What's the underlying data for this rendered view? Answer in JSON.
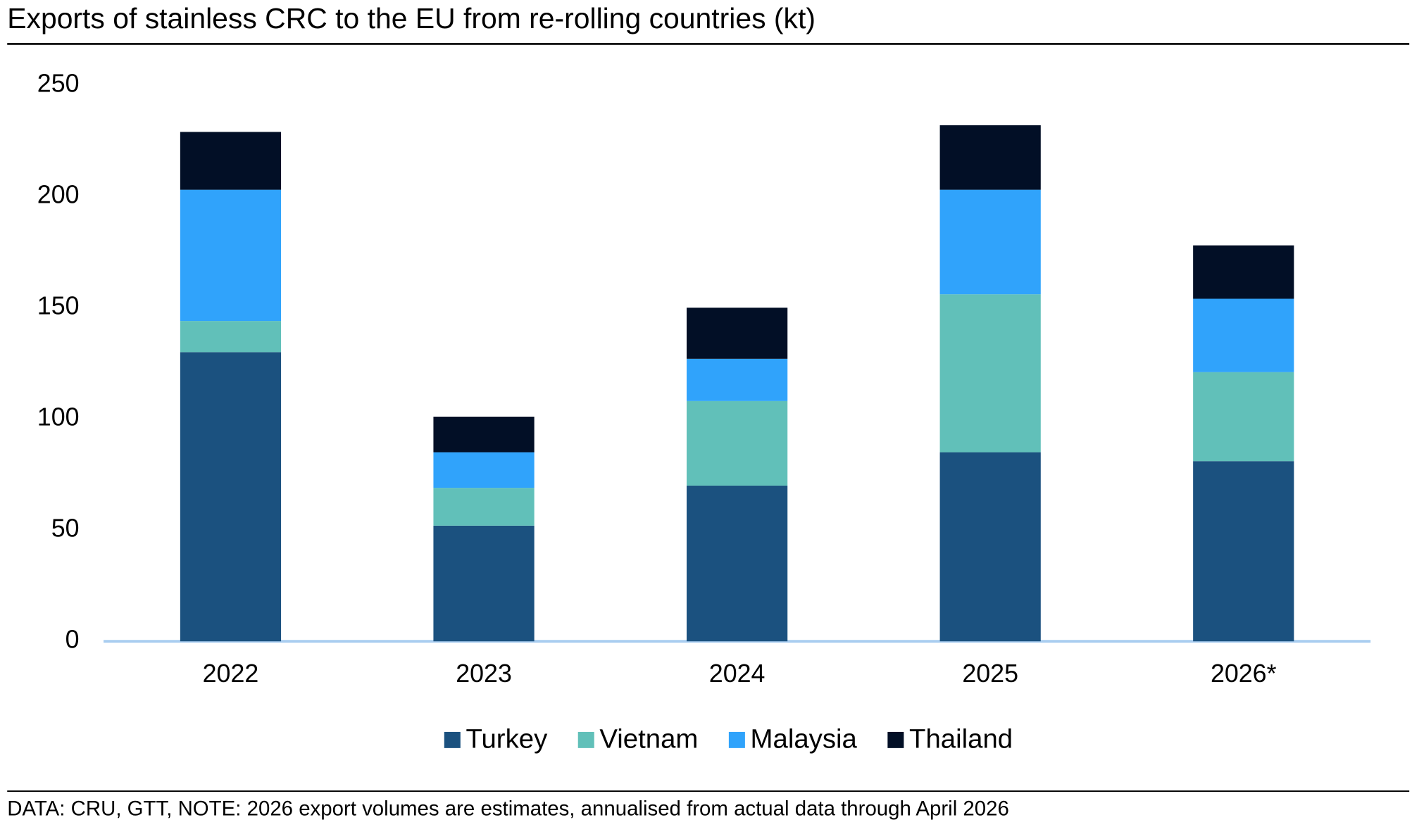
{
  "chart_data": {
    "type": "stacked-bar",
    "title": "Exports of stainless CRC to the EU from re-rolling countries (kt)",
    "categories": [
      "2022",
      "2023",
      "2024",
      "2025",
      "2026*"
    ],
    "series": [
      {
        "name": "Turkey",
        "color": "#1b517f",
        "values": [
          130,
          52,
          70,
          85,
          81
        ]
      },
      {
        "name": "Vietnam",
        "color": "#61c0b9",
        "values": [
          14,
          17,
          38,
          71,
          40
        ]
      },
      {
        "name": "Malaysia",
        "color": "#30a3fb",
        "values": [
          59,
          16,
          19,
          47,
          33
        ]
      },
      {
        "name": "Thailand",
        "color": "#020f26",
        "values": [
          26,
          16,
          23,
          29,
          24
        ]
      }
    ],
    "ylim": [
      0,
      250
    ],
    "yticks": [
      0,
      50,
      100,
      150,
      200,
      250
    ],
    "note": "DATA: CRU, GTT, NOTE: 2026 export volumes are estimates, annualised from actual data through April 2026"
  }
}
